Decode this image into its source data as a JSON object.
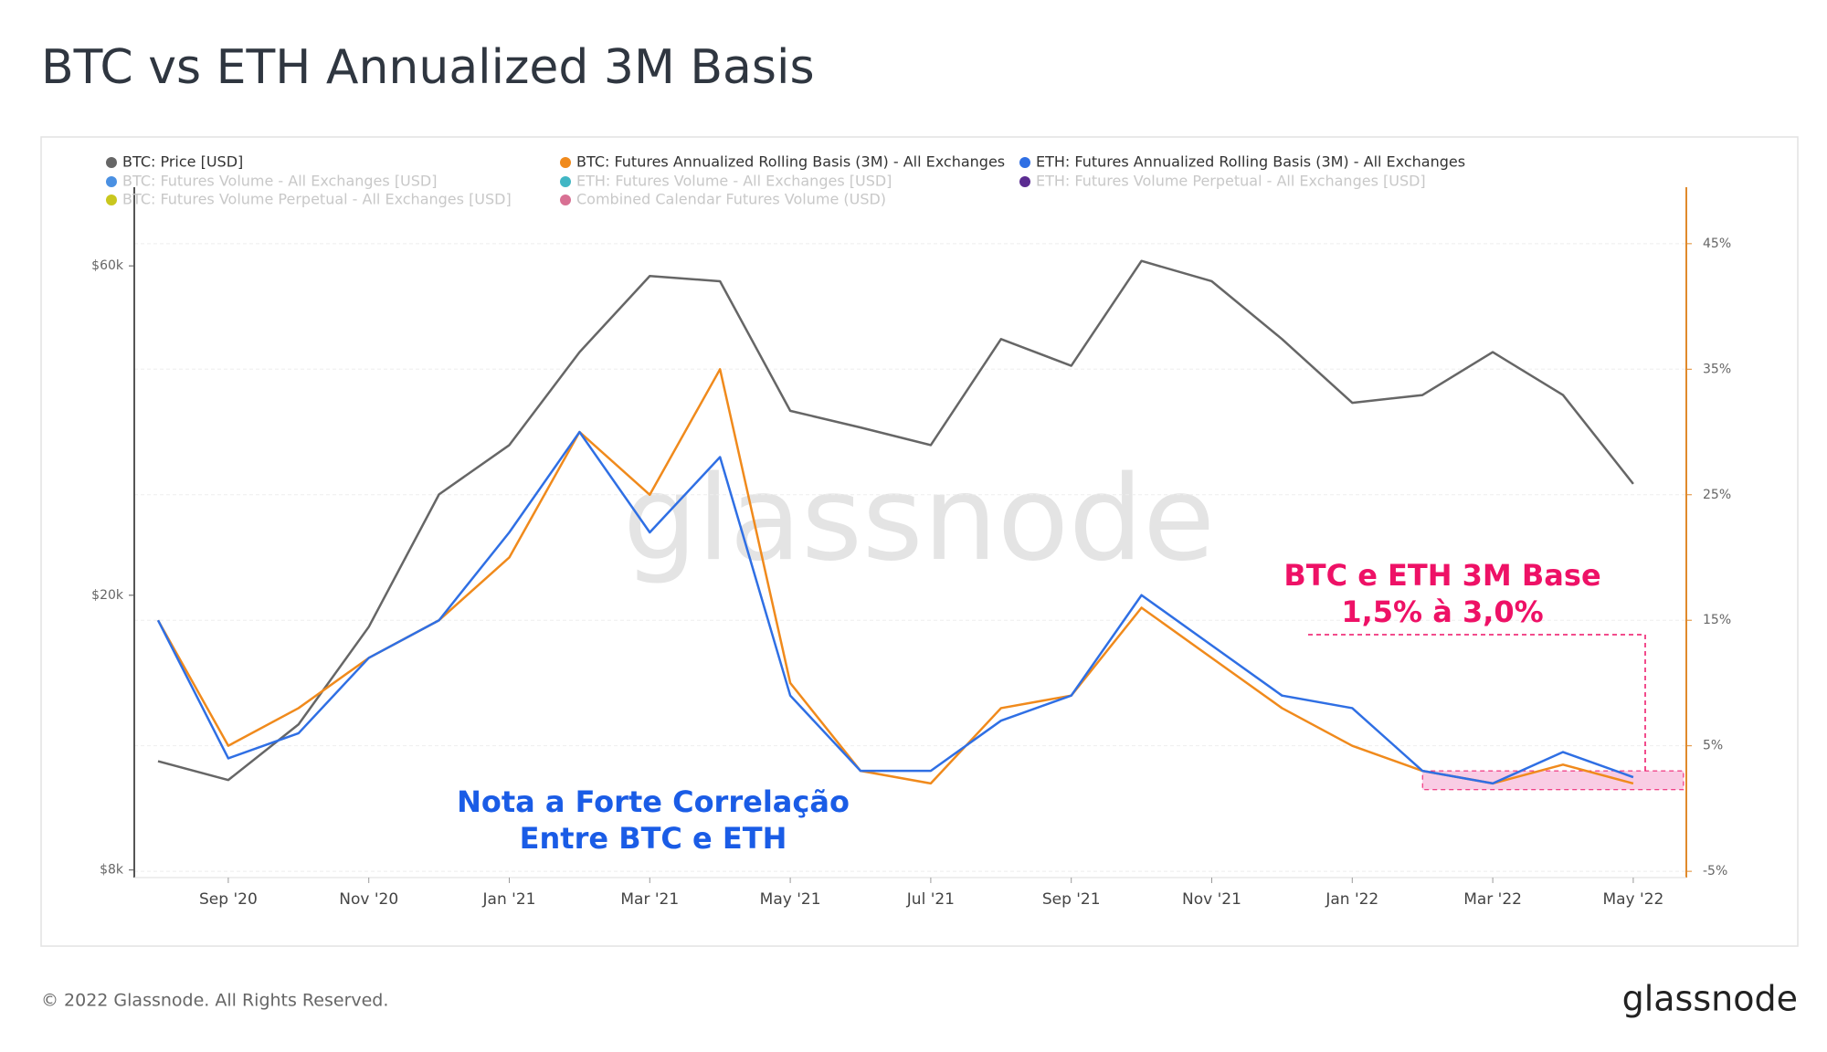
{
  "chart_data": {
    "type": "line",
    "title": "BTC vs ETH Annualized 3M Basis",
    "x": [
      "2020-08",
      "2020-09",
      "2020-10",
      "2020-11",
      "2020-12",
      "2021-01",
      "2021-02",
      "2021-03",
      "2021-04",
      "2021-05",
      "2021-06",
      "2021-07",
      "2021-08",
      "2021-09",
      "2021-10",
      "2021-11",
      "2021-12",
      "2022-01",
      "2022-02",
      "2022-03",
      "2022-04",
      "2022-05"
    ],
    "series": [
      {
        "name": "BTC: Price [USD]",
        "color": "#666666",
        "axis": "y",
        "values": [
          11500,
          10800,
          13000,
          18000,
          28000,
          33000,
          45000,
          58000,
          57000,
          37000,
          35000,
          33000,
          47000,
          43000,
          61000,
          57000,
          47000,
          38000,
          39000,
          45000,
          39000,
          29000
        ]
      },
      {
        "name": "BTC: Futures Annualized Rolling Basis (3M) - All Exchanges",
        "color": "#f08a1c",
        "axis": "y2",
        "values": [
          15,
          5,
          8,
          12,
          15,
          20,
          30,
          25,
          35,
          10,
          3,
          2,
          8,
          9,
          16,
          12,
          8,
          5,
          3,
          2,
          3.5,
          2
        ]
      },
      {
        "name": "ETH: Futures Annualized Rolling Basis (3M) - All Exchanges",
        "color": "#2f6fe4",
        "axis": "y2",
        "values": [
          15,
          4,
          6,
          12,
          15,
          22,
          30,
          22,
          28,
          9,
          3,
          3,
          7,
          9,
          17,
          13,
          9,
          8,
          3,
          2,
          4.5,
          2.5
        ]
      }
    ],
    "faded_legend": [
      {
        "name": "BTC: Futures Volume - All Exchanges [USD]",
        "color": "#4a90e2"
      },
      {
        "name": "ETH: Futures Volume - All Exchanges [USD]",
        "color": "#41b6c4"
      },
      {
        "name": "ETH: Futures Volume Perpetual - All Exchanges [USD]",
        "color": "#5b2c91"
      },
      {
        "name": "BTC: Futures Volume Perpetual - All Exchanges [USD]",
        "color": "#c9c71e"
      },
      {
        "name": "Combined Calendar Futures Volume (USD)",
        "color": "#d87093"
      }
    ],
    "yscale": "log",
    "ylim": [
      7800,
      78000
    ],
    "yticks": [
      {
        "value": 8000,
        "label": "$8k"
      },
      {
        "value": 20000,
        "label": "$20k"
      },
      {
        "value": 60000,
        "label": "$60k"
      }
    ],
    "y2lim": [
      -5.5,
      49.5
    ],
    "y2ticks": [
      {
        "value": -5,
        "label": "-5%"
      },
      {
        "value": 5,
        "label": "5%"
      },
      {
        "value": 15,
        "label": "15%"
      },
      {
        "value": 25,
        "label": "25%"
      },
      {
        "value": 35,
        "label": "35%"
      },
      {
        "value": 45,
        "label": "45%"
      }
    ],
    "xticks": [
      {
        "value": "2020-09",
        "label": "Sep '20"
      },
      {
        "value": "2020-11",
        "label": "Nov '20"
      },
      {
        "value": "2021-01",
        "label": "Jan '21"
      },
      {
        "value": "2021-03",
        "label": "Mar '21"
      },
      {
        "value": "2021-05",
        "label": "May '21"
      },
      {
        "value": "2021-07",
        "label": "Jul '21"
      },
      {
        "value": "2021-09",
        "label": "Sep '21"
      },
      {
        "value": "2021-11",
        "label": "Nov '21"
      },
      {
        "value": "2022-01",
        "label": "Jan '22"
      },
      {
        "value": "2022-03",
        "label": "Mar '22"
      },
      {
        "value": "2022-05",
        "label": "May '22"
      }
    ],
    "grid": true,
    "highlight_band": {
      "x": [
        "2022-02",
        "2022-05"
      ],
      "y2": [
        1.5,
        3.0
      ]
    },
    "annotations": [
      "Nota a Forte Correlação",
      "Entre BTC e ETH",
      "BTC e ETH 3M Base",
      "1,5% à 3,0%"
    ],
    "watermark": "glassnode"
  },
  "footer": {
    "copyright": "© 2022 Glassnode. All Rights Reserved.",
    "logo": "glassnode"
  }
}
